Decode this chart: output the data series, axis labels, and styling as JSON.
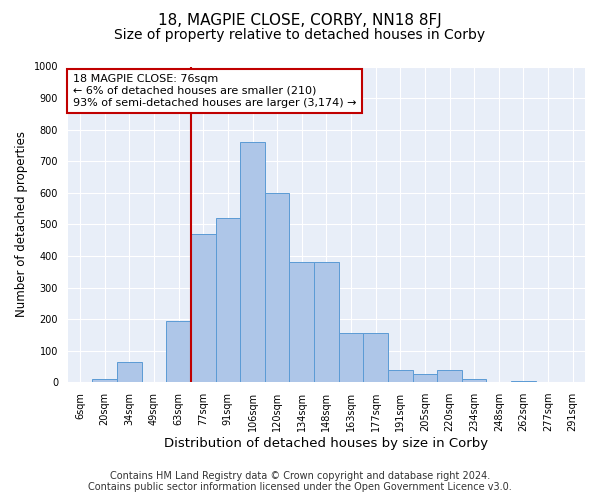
{
  "title": "18, MAGPIE CLOSE, CORBY, NN18 8FJ",
  "subtitle": "Size of property relative to detached houses in Corby",
  "xlabel": "Distribution of detached houses by size in Corby",
  "ylabel": "Number of detached properties",
  "bar_labels": [
    "6sqm",
    "20sqm",
    "34sqm",
    "49sqm",
    "63sqm",
    "77sqm",
    "91sqm",
    "106sqm",
    "120sqm",
    "134sqm",
    "148sqm",
    "163sqm",
    "177sqm",
    "191sqm",
    "205sqm",
    "220sqm",
    "234sqm",
    "248sqm",
    "262sqm",
    "277sqm",
    "291sqm"
  ],
  "bar_values": [
    0,
    10,
    65,
    0,
    195,
    470,
    520,
    760,
    600,
    380,
    380,
    155,
    155,
    40,
    25,
    40,
    10,
    0,
    5,
    0,
    0
  ],
  "bar_color": "#aec6e8",
  "bar_edge_color": "#5b9bd5",
  "annotation_line_x_label": "77sqm",
  "annotation_line_color": "#c00000",
  "annotation_box_text": "18 MAGPIE CLOSE: 76sqm\n← 6% of detached houses are smaller (210)\n93% of semi-detached houses are larger (3,174) →",
  "ylim": [
    0,
    1000
  ],
  "yticks": [
    0,
    100,
    200,
    300,
    400,
    500,
    600,
    700,
    800,
    900,
    1000
  ],
  "background_color": "#e8eef8",
  "grid_color": "#ffffff",
  "footer_line1": "Contains HM Land Registry data © Crown copyright and database right 2024.",
  "footer_line2": "Contains public sector information licensed under the Open Government Licence v3.0.",
  "title_fontsize": 11,
  "subtitle_fontsize": 10,
  "tick_fontsize": 7,
  "ylabel_fontsize": 8.5,
  "xlabel_fontsize": 9.5,
  "footer_fontsize": 7,
  "annotation_fontsize": 8
}
